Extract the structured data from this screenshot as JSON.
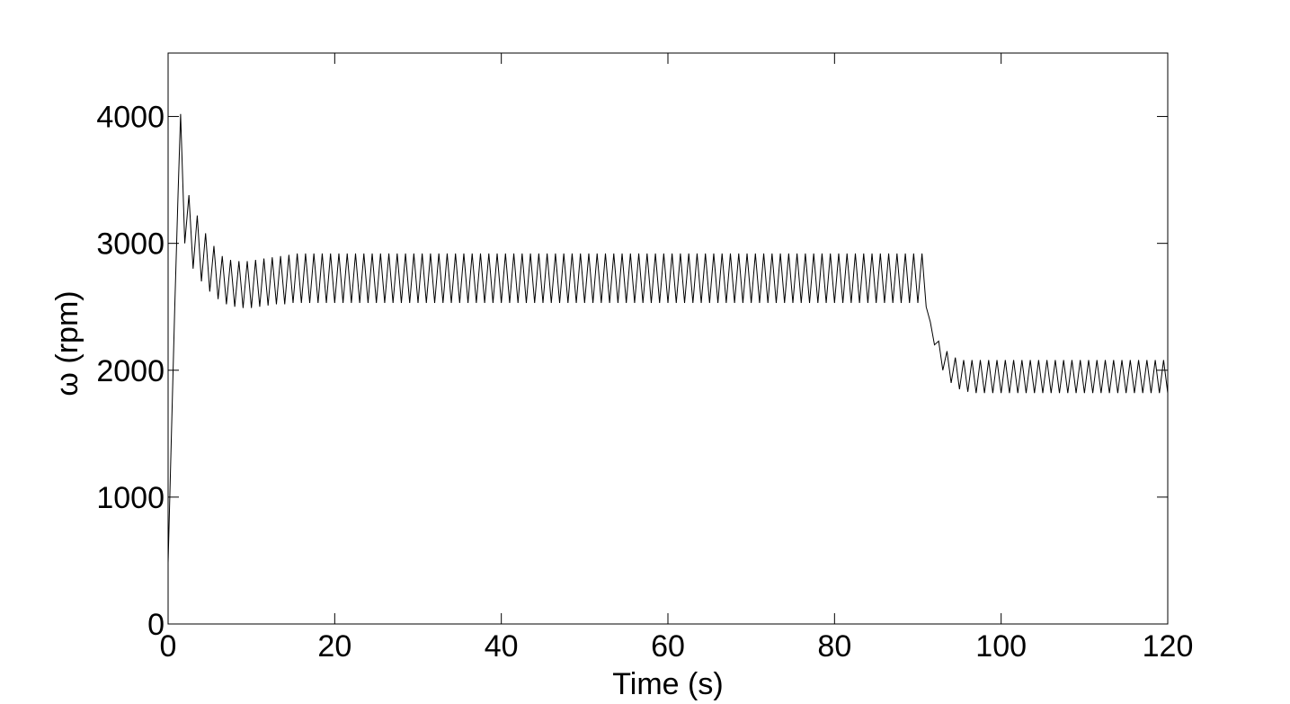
{
  "chart_data": {
    "type": "line",
    "xlabel": "Time (s)",
    "ylabel": "ω (rpm)",
    "color": "#000000",
    "xlim": [
      0,
      120
    ],
    "ylim": [
      0,
      4500
    ],
    "xticks": [
      0,
      20,
      40,
      60,
      80,
      100,
      120
    ],
    "yticks": [
      0,
      1000,
      2000,
      3000,
      4000
    ],
    "grid": false,
    "x": [
      0,
      0.4,
      0.8,
      1.2,
      1.5,
      2,
      2.5,
      3,
      3.5,
      4,
      4.5,
      5,
      5.5,
      6,
      6.5,
      7,
      7.5,
      8,
      8.5,
      9,
      9.5,
      10,
      10.5,
      11,
      11.5,
      12,
      12.5,
      13,
      13.5,
      14,
      14.5,
      15,
      15.5,
      16,
      16.5,
      17,
      17.5,
      18,
      18.5,
      19,
      19.5,
      20,
      20.5,
      21,
      21.5,
      22,
      22.5,
      23,
      23.5,
      24,
      24.5,
      25,
      25.5,
      26,
      26.5,
      27,
      27.5,
      28,
      28.5,
      29,
      29.5,
      30,
      30.5,
      31,
      31.5,
      32,
      32.5,
      33,
      33.5,
      34,
      34.5,
      35,
      35.5,
      36,
      36.5,
      37,
      37.5,
      38,
      38.5,
      39,
      39.5,
      40,
      40.5,
      41,
      41.5,
      42,
      42.5,
      43,
      43.5,
      44,
      44.5,
      45,
      45.5,
      46,
      46.5,
      47,
      47.5,
      48,
      48.5,
      49,
      49.5,
      50,
      50.5,
      51,
      51.5,
      52,
      52.5,
      53,
      53.5,
      54,
      54.5,
      55,
      55.5,
      56,
      56.5,
      57,
      57.5,
      58,
      58.5,
      59,
      59.5,
      60,
      60.5,
      61,
      61.5,
      62,
      62.5,
      63,
      63.5,
      64,
      64.5,
      65,
      65.5,
      66,
      66.5,
      67,
      67.5,
      68,
      68.5,
      69,
      69.5,
      70,
      70.5,
      71,
      71.5,
      72,
      72.5,
      73,
      73.5,
      74,
      74.5,
      75,
      75.5,
      76,
      76.5,
      77,
      77.5,
      78,
      78.5,
      79,
      79.5,
      80,
      80.5,
      81,
      81.5,
      82,
      82.5,
      83,
      83.5,
      84,
      84.5,
      85,
      85.5,
      86,
      86.5,
      87,
      87.5,
      88,
      88.5,
      89,
      89.5,
      90,
      90.5,
      91,
      91.5,
      92,
      92.5,
      93,
      93.5,
      94,
      94.5,
      95,
      95.5,
      96,
      96.5,
      97,
      97.5,
      98,
      98.5,
      99,
      99.5,
      100,
      100.5,
      101,
      101.5,
      102,
      102.5,
      103,
      103.5,
      104,
      104.5,
      105,
      105.5,
      106,
      106.5,
      107,
      107.5,
      108,
      108.5,
      109,
      109.5,
      110,
      110.5,
      111,
      111.5,
      112,
      112.5,
      113,
      113.5,
      114,
      114.5,
      115,
      115.5,
      116,
      116.5,
      117,
      117.5,
      118,
      118.5,
      119,
      119.5,
      120
    ],
    "values": [
      480,
      1500,
      2500,
      3400,
      4020,
      3000,
      3380,
      2800,
      3220,
      2700,
      3080,
      2620,
      2980,
      2560,
      2900,
      2520,
      2870,
      2500,
      2860,
      2490,
      2860,
      2490,
      2870,
      2500,
      2880,
      2510,
      2890,
      2520,
      2900,
      2520,
      2910,
      2530,
      2920,
      2530,
      2920,
      2530,
      2920,
      2530,
      2920,
      2530,
      2920,
      2530,
      2920,
      2530,
      2920,
      2530,
      2920,
      2530,
      2920,
      2530,
      2920,
      2530,
      2920,
      2530,
      2920,
      2530,
      2920,
      2530,
      2920,
      2530,
      2920,
      2530,
      2920,
      2530,
      2920,
      2530,
      2920,
      2530,
      2920,
      2530,
      2920,
      2530,
      2920,
      2530,
      2920,
      2530,
      2920,
      2530,
      2920,
      2530,
      2920,
      2530,
      2920,
      2530,
      2920,
      2530,
      2920,
      2530,
      2920,
      2530,
      2920,
      2530,
      2920,
      2530,
      2920,
      2530,
      2920,
      2530,
      2920,
      2530,
      2920,
      2530,
      2920,
      2530,
      2920,
      2530,
      2920,
      2530,
      2920,
      2530,
      2920,
      2530,
      2920,
      2530,
      2920,
      2530,
      2920,
      2530,
      2920,
      2530,
      2920,
      2530,
      2920,
      2530,
      2920,
      2530,
      2920,
      2530,
      2920,
      2530,
      2920,
      2530,
      2920,
      2530,
      2920,
      2530,
      2920,
      2530,
      2920,
      2530,
      2920,
      2530,
      2920,
      2530,
      2920,
      2530,
      2920,
      2530,
      2920,
      2530,
      2920,
      2530,
      2920,
      2530,
      2920,
      2530,
      2920,
      2530,
      2920,
      2530,
      2920,
      2530,
      2920,
      2530,
      2920,
      2530,
      2920,
      2530,
      2920,
      2530,
      2920,
      2530,
      2920,
      2530,
      2920,
      2530,
      2920,
      2530,
      2920,
      2530,
      2920,
      2530,
      2920,
      2500,
      2380,
      2200,
      2230,
      2000,
      2150,
      1900,
      2100,
      1850,
      2080,
      1830,
      2080,
      1820,
      2080,
      1820,
      2080,
      1820,
      2080,
      1820,
      2080,
      1820,
      2080,
      1820,
      2080,
      1820,
      2080,
      1820,
      2080,
      1820,
      2080,
      1820,
      2080,
      1820,
      2080,
      1820,
      2080,
      1820,
      2080,
      1820,
      2080,
      1820,
      2080,
      1820,
      2080,
      1820,
      2080,
      1820,
      2080,
      1820,
      2080,
      1820,
      2080,
      1820,
      2080,
      1820,
      2080,
      1820,
      2080,
      1820
    ]
  }
}
